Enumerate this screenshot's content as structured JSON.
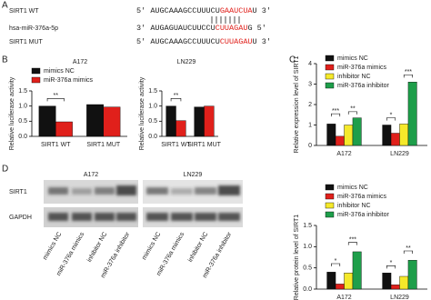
{
  "panel_labels": [
    "A",
    "B",
    "C",
    "D"
  ],
  "sequences": [
    {
      "name": "SIRT1  WT",
      "start": "5'",
      "seq": "AUGCAAAGCCUUUCU",
      "highlight": "GAAUCUA",
      "tail": "U",
      "end": "3'"
    },
    {
      "name": "hsa-miR-376a-5p",
      "start": "3'",
      "seq": "AUGAGUAUCUUCCU",
      "highlight": "CUUAGAU",
      "tail": "G",
      "end": "5'"
    },
    {
      "name": "SIRT1  MUT",
      "start": "5'",
      "seq": "AUGCAAAGCCUUUCU",
      "highlight": "CUUAGAU",
      "tail": "U",
      "end": "3'"
    }
  ],
  "blot": {
    "cell_lines": [
      "A172",
      "LN229"
    ],
    "rows": [
      "SIRT1",
      "GAPDH"
    ],
    "lanes": [
      "mimics NC",
      "miR-376a mimics",
      "inhibitor NC",
      "miR-376a inhibitor",
      "mimics NC",
      "miR-376a mimics",
      "inhibitor NC",
      "miR-376a inhibitor"
    ]
  },
  "chart_data": [
    {
      "type": "bar",
      "title": "A172",
      "y_label": "Relative luciferase activity",
      "categories": [
        "SIRT1 WT",
        "SIRT1 MUT"
      ],
      "series": [
        {
          "name": "mimics NC",
          "color": "#111111",
          "values": [
            1.0,
            1.05
          ]
        },
        {
          "name": "miR-376a mimics",
          "color": "#e0201b",
          "values": [
            0.48,
            0.97
          ]
        }
      ],
      "ylim": [
        0,
        1.5
      ],
      "yticks": [
        {
          "value": 0,
          "label": "0.0"
        },
        {
          "value": 0.5,
          "label": "0.5"
        },
        {
          "value": 1,
          "label": "1.0"
        },
        {
          "value": 1.5,
          "label": "1.5"
        }
      ],
      "legend": true,
      "annotations": [
        "**"
      ]
    },
    {
      "type": "bar",
      "title": "LN229",
      "y_label": "Relative luciferase activity",
      "categories": [
        "SIRT1 WT",
        "SIRT1 MUT"
      ],
      "series": [
        {
          "name": "mimics NC",
          "color": "#111111",
          "values": [
            1.0,
            0.97
          ]
        },
        {
          "name": "miR-376a mimics",
          "color": "#e0201b",
          "values": [
            0.52,
            1.0
          ]
        }
      ],
      "ylim": [
        0,
        1.5
      ],
      "yticks": [
        {
          "value": 0,
          "label": "0.0"
        },
        {
          "value": 0.5,
          "label": "0.5"
        },
        {
          "value": 1,
          "label": "1.0"
        },
        {
          "value": 1.5,
          "label": "1.5"
        }
      ],
      "legend": false,
      "annotations": [
        "**"
      ]
    },
    {
      "type": "bar",
      "y_label": "Relative expression level of SIRT1",
      "categories": [
        "A172",
        "LN229"
      ],
      "series": [
        {
          "name": "mimics NC",
          "color": "#111111",
          "values": [
            1.05,
            1.0
          ]
        },
        {
          "name": "miR-376a mimics",
          "color": "#e0201b",
          "values": [
            0.45,
            0.6
          ]
        },
        {
          "name": "inhibitor NC",
          "color": "#f5e92a",
          "values": [
            1.0,
            1.05
          ]
        },
        {
          "name": "miR-376a inhibitor",
          "color": "#1e9e4a",
          "values": [
            1.35,
            3.1
          ]
        }
      ],
      "ylim": [
        0,
        4
      ],
      "yticks": [
        0,
        1,
        2,
        3,
        4
      ],
      "legend": true,
      "annotations": [
        "***",
        "**",
        "*",
        "***"
      ]
    },
    {
      "type": "bar",
      "y_label": "Relative protein level of SIRT1",
      "categories": [
        "A172",
        "LN229"
      ],
      "series": [
        {
          "name": "mimics NC",
          "color": "#111111",
          "values": [
            0.4,
            0.38
          ]
        },
        {
          "name": "miR-376a mimics",
          "color": "#e0201b",
          "values": [
            0.12,
            0.1
          ]
        },
        {
          "name": "inhibitor NC",
          "color": "#f5e92a",
          "values": [
            0.38,
            0.3
          ]
        },
        {
          "name": "miR-376a inhibitor",
          "color": "#1e9e4a",
          "values": [
            0.88,
            0.68
          ]
        }
      ],
      "ylim": [
        0,
        1.5
      ],
      "yticks": [
        {
          "value": 0,
          "label": "0.0"
        },
        {
          "value": 0.5,
          "label": "0.5"
        },
        {
          "value": 1,
          "label": "1.0"
        },
        {
          "value": 1.5,
          "label": "1.5"
        }
      ],
      "legend": true,
      "annotations": [
        "*",
        "***",
        "*",
        "**"
      ]
    }
  ]
}
